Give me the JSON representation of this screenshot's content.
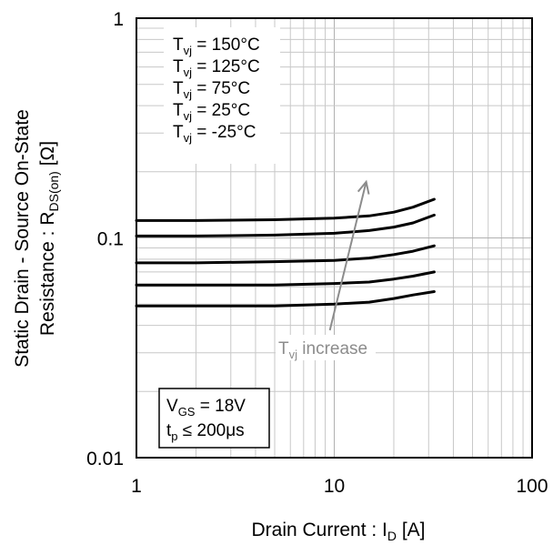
{
  "chart_data": {
    "type": "line",
    "title": "",
    "xlabel": {
      "main": "Drain Current : I",
      "sub": "D",
      "unit": " [A]"
    },
    "ylabel": {
      "line1": "Static Drain - Source On-State",
      "line2_main": "Resistance : R",
      "line2_sub": "DS(on)",
      "line2_unit": " [Ω]"
    },
    "x_scale": "log",
    "y_scale": "log",
    "xlim": [
      1,
      100
    ],
    "ylim": [
      0.01,
      1
    ],
    "x_ticks": [
      {
        "value": 1,
        "label": "1"
      },
      {
        "value": 10,
        "label": "10"
      },
      {
        "value": 100,
        "label": "100"
      }
    ],
    "y_ticks": [
      {
        "value": 0.01,
        "label": "0.01"
      },
      {
        "value": 0.1,
        "label": "0.1"
      },
      {
        "value": 1,
        "label": "1"
      }
    ],
    "grid": true,
    "legend_position": "top-left",
    "legend": [
      {
        "main": "T",
        "sub": "vj",
        "text": " = 150°C"
      },
      {
        "main": "T",
        "sub": "vj",
        "text": " = 125°C"
      },
      {
        "main": "T",
        "sub": "vj",
        "text": " =  75°C"
      },
      {
        "main": "T",
        "sub": "vj",
        "text": " =  25°C"
      },
      {
        "main": "T",
        "sub": "vj",
        "text": " = -25°C"
      }
    ],
    "series": [
      {
        "x": [
          1,
          2,
          5,
          10,
          15,
          20,
          25,
          32
        ],
        "y": [
          0.12,
          0.12,
          0.121,
          0.123,
          0.126,
          0.131,
          0.138,
          0.15
        ]
      },
      {
        "x": [
          1,
          2,
          5,
          10,
          15,
          20,
          25,
          32
        ],
        "y": [
          0.102,
          0.102,
          0.103,
          0.105,
          0.108,
          0.112,
          0.117,
          0.127
        ]
      },
      {
        "x": [
          1,
          2,
          5,
          10,
          15,
          20,
          25,
          32
        ],
        "y": [
          0.077,
          0.077,
          0.078,
          0.079,
          0.081,
          0.084,
          0.087,
          0.092
        ]
      },
      {
        "x": [
          1,
          2,
          5,
          10,
          15,
          20,
          25,
          32
        ],
        "y": [
          0.061,
          0.061,
          0.061,
          0.062,
          0.063,
          0.065,
          0.067,
          0.07
        ]
      },
      {
        "x": [
          1,
          2,
          5,
          10,
          15,
          20,
          25,
          32
        ],
        "y": [
          0.049,
          0.049,
          0.049,
          0.05,
          0.051,
          0.053,
          0.055,
          0.057
        ]
      }
    ],
    "annotation": {
      "main": "T",
      "sub": "vj",
      "text": " increase",
      "arrow_from": [
        9.5,
        0.038
      ],
      "arrow_to": [
        14.5,
        0.18
      ]
    },
    "conditions": [
      {
        "main": "V",
        "sub": "GS",
        "text": " = 18V"
      },
      {
        "main": "t",
        "sub": "p",
        "text": " ≤ 200μs"
      }
    ],
    "colors": {
      "series": "#000000",
      "grid": "#c8c8c8",
      "annotation": "#8c8c8c"
    }
  }
}
